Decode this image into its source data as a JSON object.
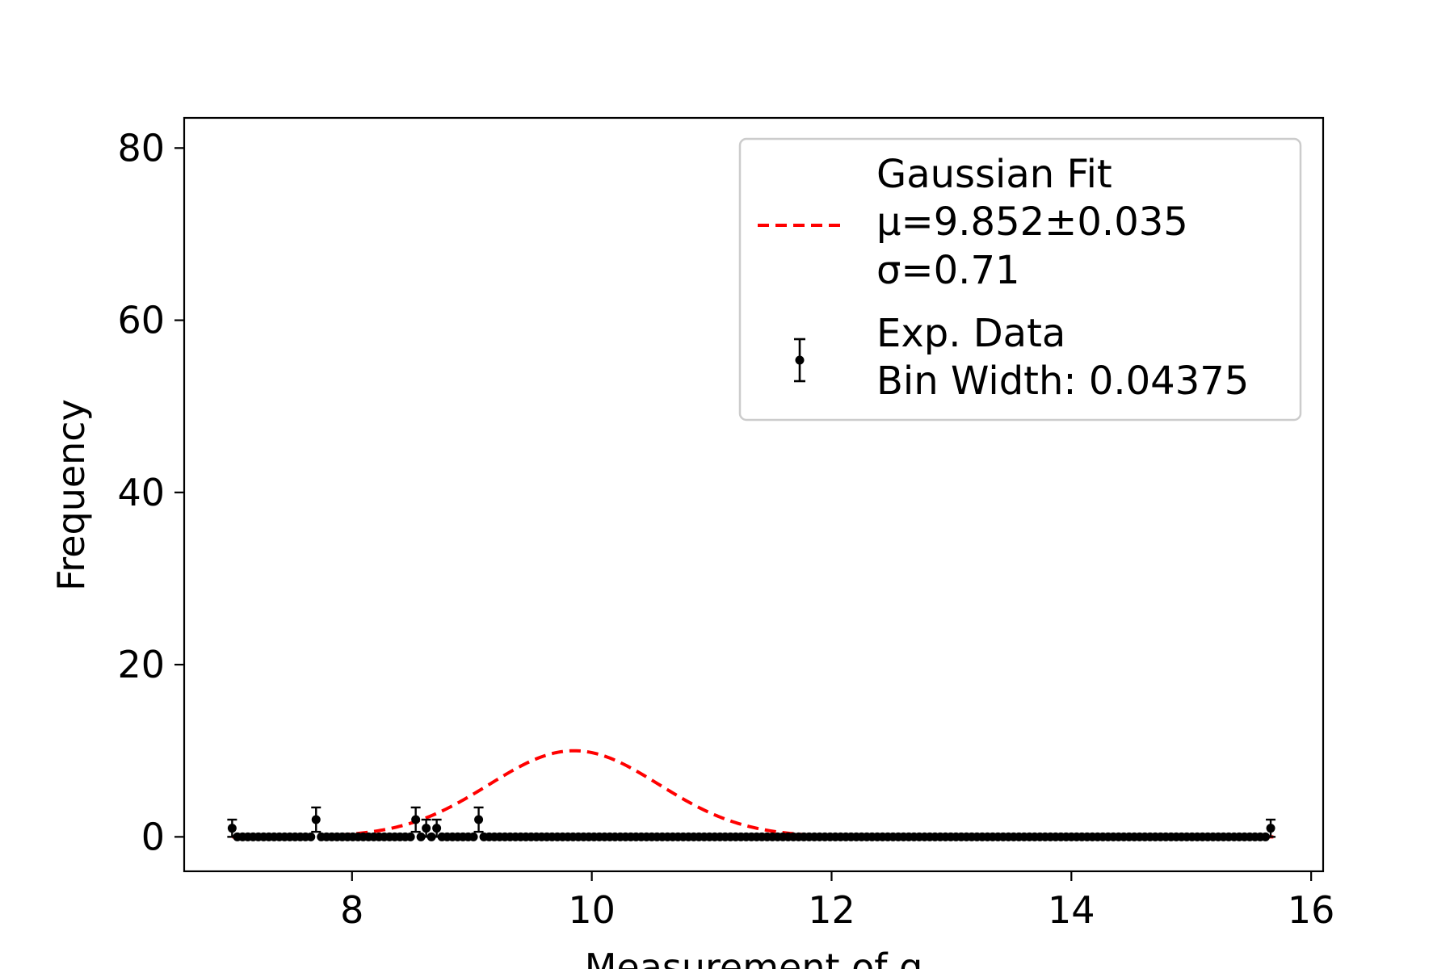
{
  "chart_data": {
    "type": "scatter",
    "xlabel": "Measurement of g",
    "ylabel": "Frequency",
    "xlim": [
      6.6,
      16.1
    ],
    "ylim": [
      -4,
      83.5
    ],
    "xticks": [
      8,
      10,
      12,
      14,
      16
    ],
    "yticks": [
      0,
      20,
      40,
      60,
      80
    ],
    "grid": false,
    "legend_placement": "top-right",
    "legend": {
      "fit_line1": "Gaussian Fit",
      "fit_line2": "μ=9.852±0.035",
      "fit_line3": "σ=0.71",
      "data_line1": "Exp. Data",
      "data_line2": "Bin Width: 0.04375"
    },
    "fit": {
      "name": "Gaussian Fit",
      "mu": 9.852,
      "mu_err": 0.035,
      "sigma": 0.71,
      "amplitude": 10,
      "x_range": [
        7.0,
        15.7
      ],
      "color": "#ff0000",
      "style": "dashed"
    },
    "series": [
      {
        "name": "Exp. Data",
        "color": "#000000",
        "bin_start": 7.0,
        "bin_width": 0.04375,
        "values": [
          1,
          0,
          0,
          0,
          0,
          0,
          0,
          0,
          0,
          0,
          0,
          0,
          0,
          0,
          0,
          0,
          2,
          0,
          0,
          0,
          0,
          0,
          0,
          0,
          0,
          0,
          0,
          0,
          0,
          0,
          0,
          0,
          0,
          0,
          0,
          2,
          0,
          1,
          0,
          1,
          0,
          0,
          0,
          0,
          0,
          0,
          0,
          2,
          0,
          0,
          0,
          0,
          0,
          0,
          0,
          0,
          0,
          0,
          0,
          0,
          0,
          0,
          0,
          0,
          0,
          0,
          0,
          0,
          0,
          0,
          0,
          0,
          0,
          0,
          0,
          0,
          0,
          0,
          0,
          0,
          0,
          0,
          0,
          0,
          0,
          0,
          0,
          0,
          0,
          0,
          0,
          0,
          0,
          0,
          0,
          0,
          0,
          0,
          0,
          0,
          0,
          0,
          0,
          0,
          0,
          0,
          0,
          0,
          0,
          0,
          0,
          0,
          0,
          0,
          0,
          0,
          0,
          0,
          0,
          0,
          0,
          0,
          0,
          0,
          0,
          0,
          0,
          0,
          0,
          0,
          0,
          0,
          0,
          0,
          0,
          0,
          0,
          0,
          0,
          0,
          0,
          0,
          0,
          0,
          0,
          0,
          0,
          0,
          0,
          0,
          0,
          0,
          0,
          0,
          0,
          0,
          0,
          0,
          0,
          0,
          0,
          0,
          0,
          0,
          0,
          0,
          0,
          0,
          0,
          0,
          0,
          0,
          0,
          0,
          0,
          0,
          0,
          0,
          0,
          0,
          0,
          0,
          0,
          0,
          0,
          0,
          0,
          0,
          0,
          0,
          0,
          0,
          0,
          0,
          0,
          0,
          0,
          0,
          1
        ]
      }
    ]
  }
}
